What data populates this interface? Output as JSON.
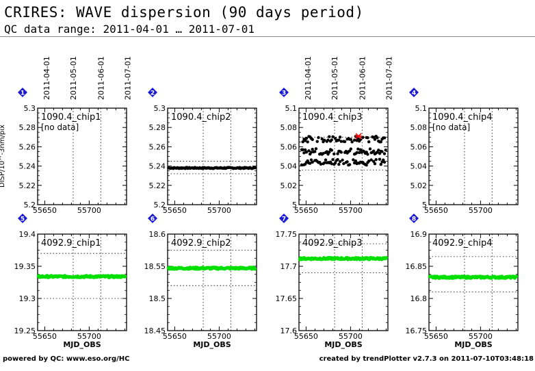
{
  "header": {
    "title": "CRIRES: WAVE dispersion (90 days period)",
    "subtitle": "QC data range: 2011-04-01 … 2011-07-01"
  },
  "footer": {
    "left": "powered by QC: www.eso.org/HC",
    "right": "created by trendPlotter v2.7.3 on 2011-07-10T03:48:18"
  },
  "top_axis_labels": [
    "2011-04-01",
    "2011-05-01",
    "2011-06-01",
    "2011-07-01"
  ],
  "colors": {
    "row1_points": "#000000",
    "row2_points": "#00e000",
    "outlier": "#ff0000",
    "badge": "#1a1ad0"
  },
  "chart_data": [
    {
      "type": "scatter",
      "panel": "1",
      "label": "1090.4_chip1",
      "note": "[no data]",
      "ylabel": "DISP/10^-3nm/pix",
      "xlim": [
        55642,
        55742
      ],
      "ylim": [
        5.2,
        5.3
      ],
      "yticks": [
        "5.2",
        "5.22",
        "5.24",
        "5.26",
        "5.28",
        "5.3"
      ],
      "xticks": [
        "55650",
        "55700"
      ],
      "xlabel": "",
      "ref_lines": [],
      "mean": null,
      "spread": 0,
      "outliers": [],
      "top_axis": true
    },
    {
      "type": "scatter",
      "panel": "2",
      "label": "1090.4_chip2",
      "note": "",
      "xlim": [
        55642,
        55742
      ],
      "ylim": [
        5.2,
        5.3
      ],
      "yticks": [
        "5.2",
        "5.22",
        "5.24",
        "5.26",
        "5.28",
        "5.3"
      ],
      "xticks": [
        "55650",
        "55700"
      ],
      "xlabel": "",
      "ref_lines": [
        5.245,
        5.232
      ],
      "mean": 5.238,
      "spread": 0.001,
      "outliers": [],
      "top_axis": false
    },
    {
      "type": "scatter",
      "panel": "3",
      "label": "1090.4_chip3",
      "note": "",
      "xlim": [
        55642,
        55742
      ],
      "ylim": [
        5.0,
        5.1
      ],
      "yticks": [
        "5",
        "5.02",
        "5.04",
        "5.06",
        "5.08",
        "5.1"
      ],
      "xticks": [
        "55650",
        "55700"
      ],
      "xlabel": "",
      "ref_lines": [
        5.07,
        5.036
      ],
      "mean": 5.055,
      "spread": 0.012,
      "outliers": [
        [
          55709,
          5.071
        ]
      ],
      "top_axis": true
    },
    {
      "type": "scatter",
      "panel": "4",
      "label": "1090.4_chip4",
      "note": "[no data]",
      "xlim": [
        55642,
        55742
      ],
      "ylim": [
        5.0,
        5.1
      ],
      "yticks": [
        "5",
        "5.02",
        "5.04",
        "5.06",
        "5.08",
        "5.1"
      ],
      "xticks": [
        "55650",
        "55700"
      ],
      "xlabel": "",
      "ref_lines": [],
      "mean": null,
      "spread": 0,
      "outliers": [],
      "top_axis": false
    },
    {
      "type": "scatter",
      "panel": "5",
      "label": "4092.9_chip1",
      "note": "",
      "xlim": [
        55642,
        55742
      ],
      "ylim": [
        19.25,
        19.4
      ],
      "yticks": [
        "19.25",
        "19.3",
        "19.35",
        "19.4"
      ],
      "xticks": [
        "55650",
        "55700"
      ],
      "xlabel": "MJD_OBS",
      "ref_lines": [
        19.37,
        19.3
      ],
      "mean": 19.334,
      "spread": 0.0015,
      "outliers": [],
      "top_axis": false
    },
    {
      "type": "scatter",
      "panel": "6",
      "label": "4092.9_chip2",
      "note": "",
      "xlim": [
        55642,
        55742
      ],
      "ylim": [
        18.45,
        18.6
      ],
      "yticks": [
        "18.45",
        "18.5",
        "18.55",
        "18.6"
      ],
      "xticks": [
        "55650",
        "55700"
      ],
      "xlabel": "MJD_OBS",
      "ref_lines": [
        18.575,
        18.52
      ],
      "mean": 18.547,
      "spread": 0.0015,
      "outliers": [],
      "top_axis": false
    },
    {
      "type": "scatter",
      "panel": "7",
      "label": "4092.9_chip3",
      "note": "",
      "xlim": [
        55642,
        55742
      ],
      "ylim": [
        17.6,
        17.75
      ],
      "yticks": [
        "17.6",
        "17.65",
        "17.7",
        "17.75"
      ],
      "xticks": [
        "55650",
        "55700"
      ],
      "xlabel": "MJD_OBS",
      "ref_lines": [
        17.735,
        17.69
      ],
      "mean": 17.712,
      "spread": 0.0015,
      "outliers": [],
      "top_axis": false
    },
    {
      "type": "scatter",
      "panel": "8",
      "label": "4092.9_chip4",
      "note": "",
      "xlim": [
        55642,
        55742
      ],
      "ylim": [
        16.75,
        16.9
      ],
      "yticks": [
        "16.75",
        "16.8",
        "16.85",
        "16.9"
      ],
      "xticks": [
        "55650",
        "55700"
      ],
      "xlabel": "MJD_OBS",
      "ref_lines": [
        16.865,
        16.81
      ],
      "mean": 16.833,
      "spread": 0.0015,
      "outliers": [],
      "top_axis": false
    }
  ]
}
